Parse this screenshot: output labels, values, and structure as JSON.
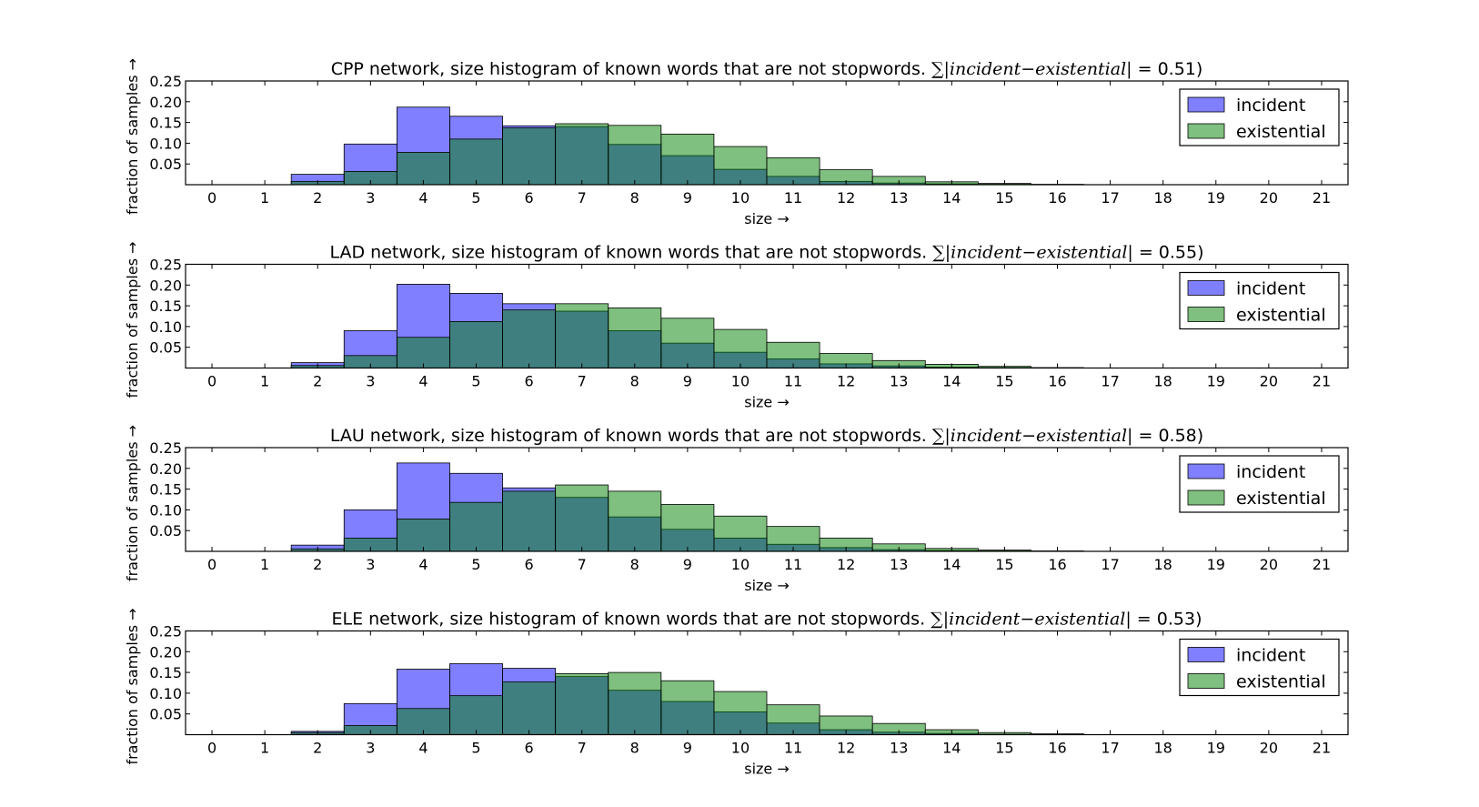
{
  "colors": {
    "incident": "#0000ff",
    "existential": "#008000",
    "bar_alpha": 0.5
  },
  "chart_data": [
    {
      "type": "bar",
      "title_prefix": "CPP network, size histogram of known words that are not stopwords. ",
      "title_math": "∑|incident−existential| =",
      "title_value": " 0.51)",
      "xlabel": "size →",
      "ylabel": "fraction of samples →",
      "x": [
        0,
        1,
        2,
        3,
        4,
        5,
        6,
        7,
        8,
        9,
        10,
        11,
        12,
        13,
        14,
        15,
        16,
        17,
        18,
        19,
        20,
        21
      ],
      "xlim": [
        -0.5,
        21.5
      ],
      "ylim": [
        0,
        0.25
      ],
      "yticks": [
        "0.05",
        "0.10",
        "0.15",
        "0.20",
        "0.25"
      ],
      "legend": "upper right",
      "series": [
        {
          "name": "incident",
          "values": [
            0,
            0,
            0.025,
            0.098,
            0.187,
            0.165,
            0.142,
            0.14,
            0.097,
            0.07,
            0.037,
            0.02,
            0.008,
            0.004,
            0.002,
            0.001,
            0,
            0,
            0,
            0,
            0,
            0
          ]
        },
        {
          "name": "existential",
          "values": [
            0,
            0,
            0.008,
            0.032,
            0.078,
            0.11,
            0.137,
            0.147,
            0.143,
            0.122,
            0.092,
            0.065,
            0.036,
            0.02,
            0.007,
            0.003,
            0.001,
            0,
            0,
            0,
            0,
            0
          ]
        }
      ]
    },
    {
      "type": "bar",
      "title_prefix": "LAD network, size histogram of known words that are not stopwords. ",
      "title_math": "∑|incident−existential| =",
      "title_value": " 0.55)",
      "xlabel": "size →",
      "ylabel": "fraction of samples →",
      "x": [
        0,
        1,
        2,
        3,
        4,
        5,
        6,
        7,
        8,
        9,
        10,
        11,
        12,
        13,
        14,
        15,
        16,
        17,
        18,
        19,
        20,
        21
      ],
      "xlim": [
        -0.5,
        21.5
      ],
      "ylim": [
        0,
        0.25
      ],
      "yticks": [
        "0.05",
        "0.10",
        "0.15",
        "0.20",
        "0.25"
      ],
      "legend": "upper right",
      "series": [
        {
          "name": "incident",
          "values": [
            0,
            0,
            0.013,
            0.09,
            0.202,
            0.18,
            0.155,
            0.137,
            0.09,
            0.06,
            0.038,
            0.022,
            0.01,
            0.005,
            0.002,
            0.001,
            0,
            0,
            0,
            0,
            0,
            0
          ]
        },
        {
          "name": "existential",
          "values": [
            0,
            0,
            0.006,
            0.03,
            0.074,
            0.112,
            0.14,
            0.155,
            0.145,
            0.12,
            0.093,
            0.062,
            0.035,
            0.018,
            0.009,
            0.004,
            0.001,
            0,
            0,
            0,
            0,
            0
          ]
        }
      ]
    },
    {
      "type": "bar",
      "title_prefix": "LAU network, size histogram of known words that are not stopwords. ",
      "title_math": "∑|incident−existential| =",
      "title_value": " 0.58)",
      "xlabel": "size →",
      "ylabel": "fraction of samples →",
      "x": [
        0,
        1,
        2,
        3,
        4,
        5,
        6,
        7,
        8,
        9,
        10,
        11,
        12,
        13,
        14,
        15,
        16,
        17,
        18,
        19,
        20,
        21
      ],
      "xlim": [
        -0.5,
        21.5
      ],
      "ylim": [
        0,
        0.25
      ],
      "yticks": [
        "0.05",
        "0.10",
        "0.15",
        "0.20",
        "0.25"
      ],
      "legend": "upper right",
      "series": [
        {
          "name": "incident",
          "values": [
            0,
            0,
            0.015,
            0.1,
            0.213,
            0.188,
            0.153,
            0.13,
            0.083,
            0.053,
            0.032,
            0.017,
            0.009,
            0.004,
            0.002,
            0.001,
            0,
            0,
            0,
            0,
            0,
            0
          ]
        },
        {
          "name": "existential",
          "values": [
            0,
            0,
            0.006,
            0.032,
            0.078,
            0.118,
            0.145,
            0.16,
            0.145,
            0.113,
            0.085,
            0.06,
            0.032,
            0.018,
            0.007,
            0.003,
            0.001,
            0,
            0,
            0,
            0,
            0
          ]
        }
      ]
    },
    {
      "type": "bar",
      "title_prefix": "ELE network, size histogram of known words that are not stopwords. ",
      "title_math": "∑|incident−existential| =",
      "title_value": " 0.53)",
      "xlabel": "size →",
      "ylabel": "fraction of samples →",
      "x": [
        0,
        1,
        2,
        3,
        4,
        5,
        6,
        7,
        8,
        9,
        10,
        11,
        12,
        13,
        14,
        15,
        16,
        17,
        18,
        19,
        20,
        21
      ],
      "xlim": [
        -0.5,
        21.5
      ],
      "ylim": [
        0,
        0.25
      ],
      "yticks": [
        "0.05",
        "0.10",
        "0.15",
        "0.20",
        "0.25"
      ],
      "legend": "upper right",
      "series": [
        {
          "name": "incident",
          "values": [
            0,
            0,
            0.008,
            0.075,
            0.158,
            0.171,
            0.16,
            0.14,
            0.107,
            0.08,
            0.055,
            0.028,
            0.012,
            0.006,
            0.003,
            0.001,
            0,
            0,
            0,
            0,
            0,
            0
          ]
        },
        {
          "name": "existential",
          "values": [
            0,
            0,
            0.005,
            0.022,
            0.063,
            0.094,
            0.127,
            0.147,
            0.15,
            0.13,
            0.104,
            0.072,
            0.045,
            0.027,
            0.012,
            0.005,
            0.002,
            0,
            0,
            0,
            0,
            0
          ]
        }
      ]
    }
  ]
}
